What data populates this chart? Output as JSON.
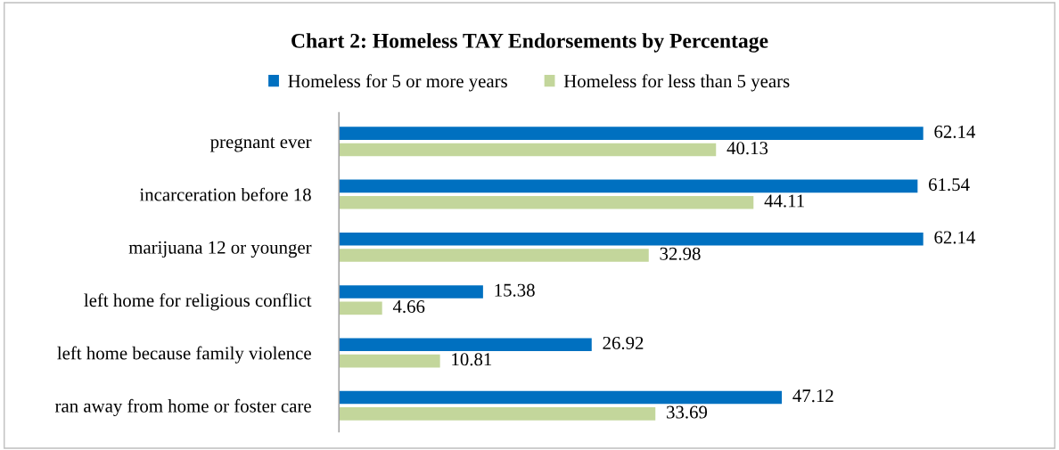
{
  "chart_data": {
    "type": "bar",
    "orientation": "horizontal",
    "title": "Chart 2: Homeless TAY Endorsements by Percentage",
    "categories": [
      "pregnant ever",
      "incarceration before 18",
      "marijuana 12 or younger",
      "left home for religious conflict",
      "left home because family violence",
      "ran away from home or foster care"
    ],
    "series": [
      {
        "name": "Homeless for 5 or more years",
        "color": "#0070c0",
        "values": [
          62.14,
          61.54,
          62.14,
          15.38,
          26.92,
          47.12
        ]
      },
      {
        "name": "Homeless for less than 5 years",
        "color": "#c3d69b",
        "values": [
          40.13,
          44.11,
          32.98,
          4.66,
          10.81,
          33.69
        ]
      }
    ],
    "data_labels": true,
    "legend": "top",
    "grid": false,
    "tick_labels": "y"
  }
}
